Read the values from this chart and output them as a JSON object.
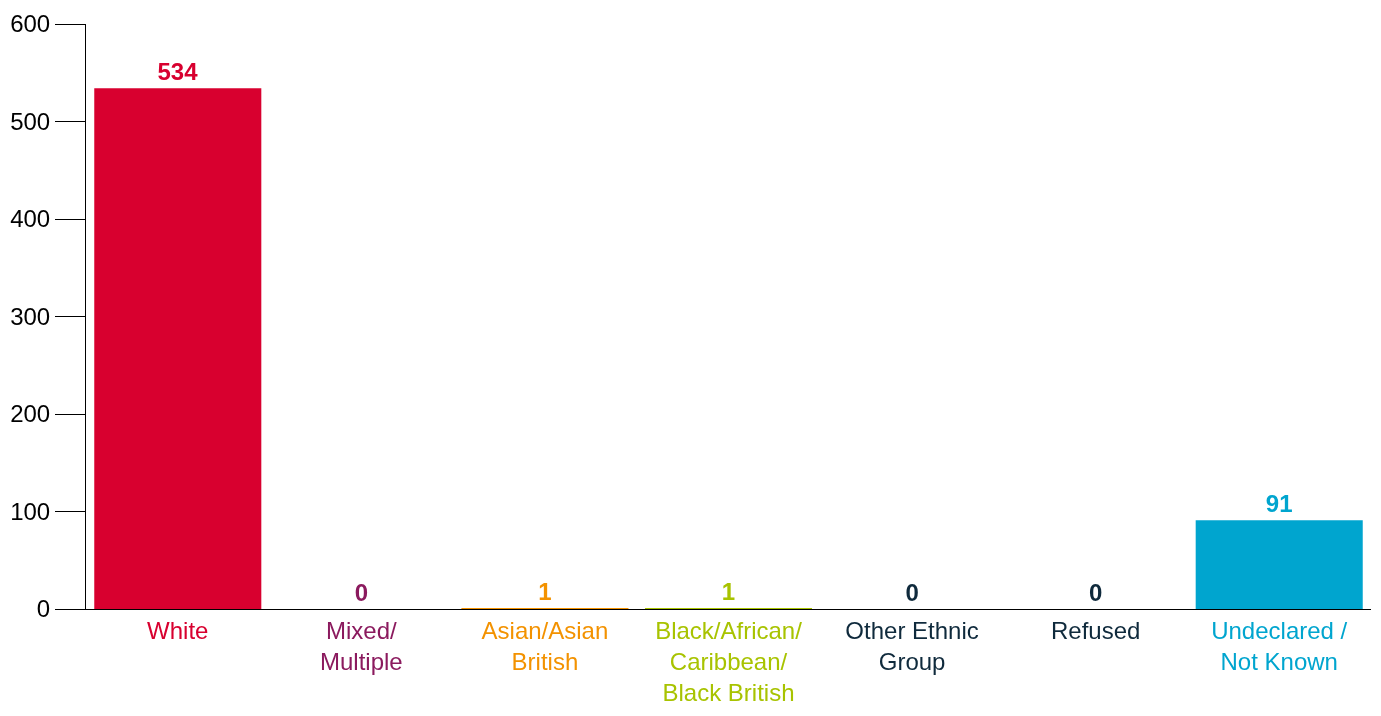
{
  "chart_data": {
    "type": "bar",
    "categories": [
      "White",
      "Mixed/\nMultiple",
      "Asian/Asian\nBritish",
      "Black/African/\nCaribbean/\nBlack British",
      "Other Ethnic\nGroup",
      "Refused",
      "Undeclared /\nNot Known"
    ],
    "values": [
      534,
      0,
      1,
      1,
      0,
      0,
      91
    ],
    "colors": [
      "#d8002f",
      "#8b1a5e",
      "#f39200",
      "#a8c300",
      "#0f2a3c",
      "#0f2a3c",
      "#00a5cf"
    ],
    "ylim": [
      0,
      600
    ],
    "yticks": [
      0,
      100,
      200,
      300,
      400,
      500,
      600
    ],
    "data_labels": true
  }
}
